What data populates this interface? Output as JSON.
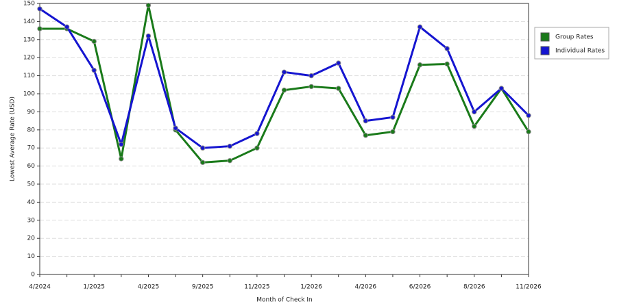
{
  "chart_data": {
    "type": "line",
    "x_label": "Month of Check In",
    "y_label": "Lowest Average Rate (USD)",
    "categories": [
      "4/2024",
      null,
      "1/2025",
      null,
      "4/2025",
      null,
      "9/2025",
      null,
      "11/2025",
      null,
      "1/2026",
      null,
      "4/2026",
      null,
      "6/2026",
      null,
      "8/2026",
      null,
      "11/2026"
    ],
    "series": [
      {
        "name": "Group Rates",
        "color": "#1a7a1a",
        "values": [
          136,
          136,
          129,
          64,
          149,
          80,
          62,
          63,
          70,
          102,
          104,
          103,
          77,
          79,
          116,
          116.5,
          82,
          103,
          79
        ]
      },
      {
        "name": "Individual Rates",
        "color": "#1515d0",
        "values": [
          147,
          137,
          113,
          72,
          132,
          81,
          70,
          71,
          78,
          112,
          110,
          117,
          85,
          87,
          137,
          125,
          90,
          103,
          88
        ]
      }
    ],
    "ylim": [
      0,
      150
    ],
    "yticks": [
      0,
      10,
      20,
      30,
      40,
      50,
      60,
      70,
      80,
      90,
      100,
      110,
      120,
      130,
      140,
      150
    ],
    "grid": true,
    "legend": "right"
  }
}
